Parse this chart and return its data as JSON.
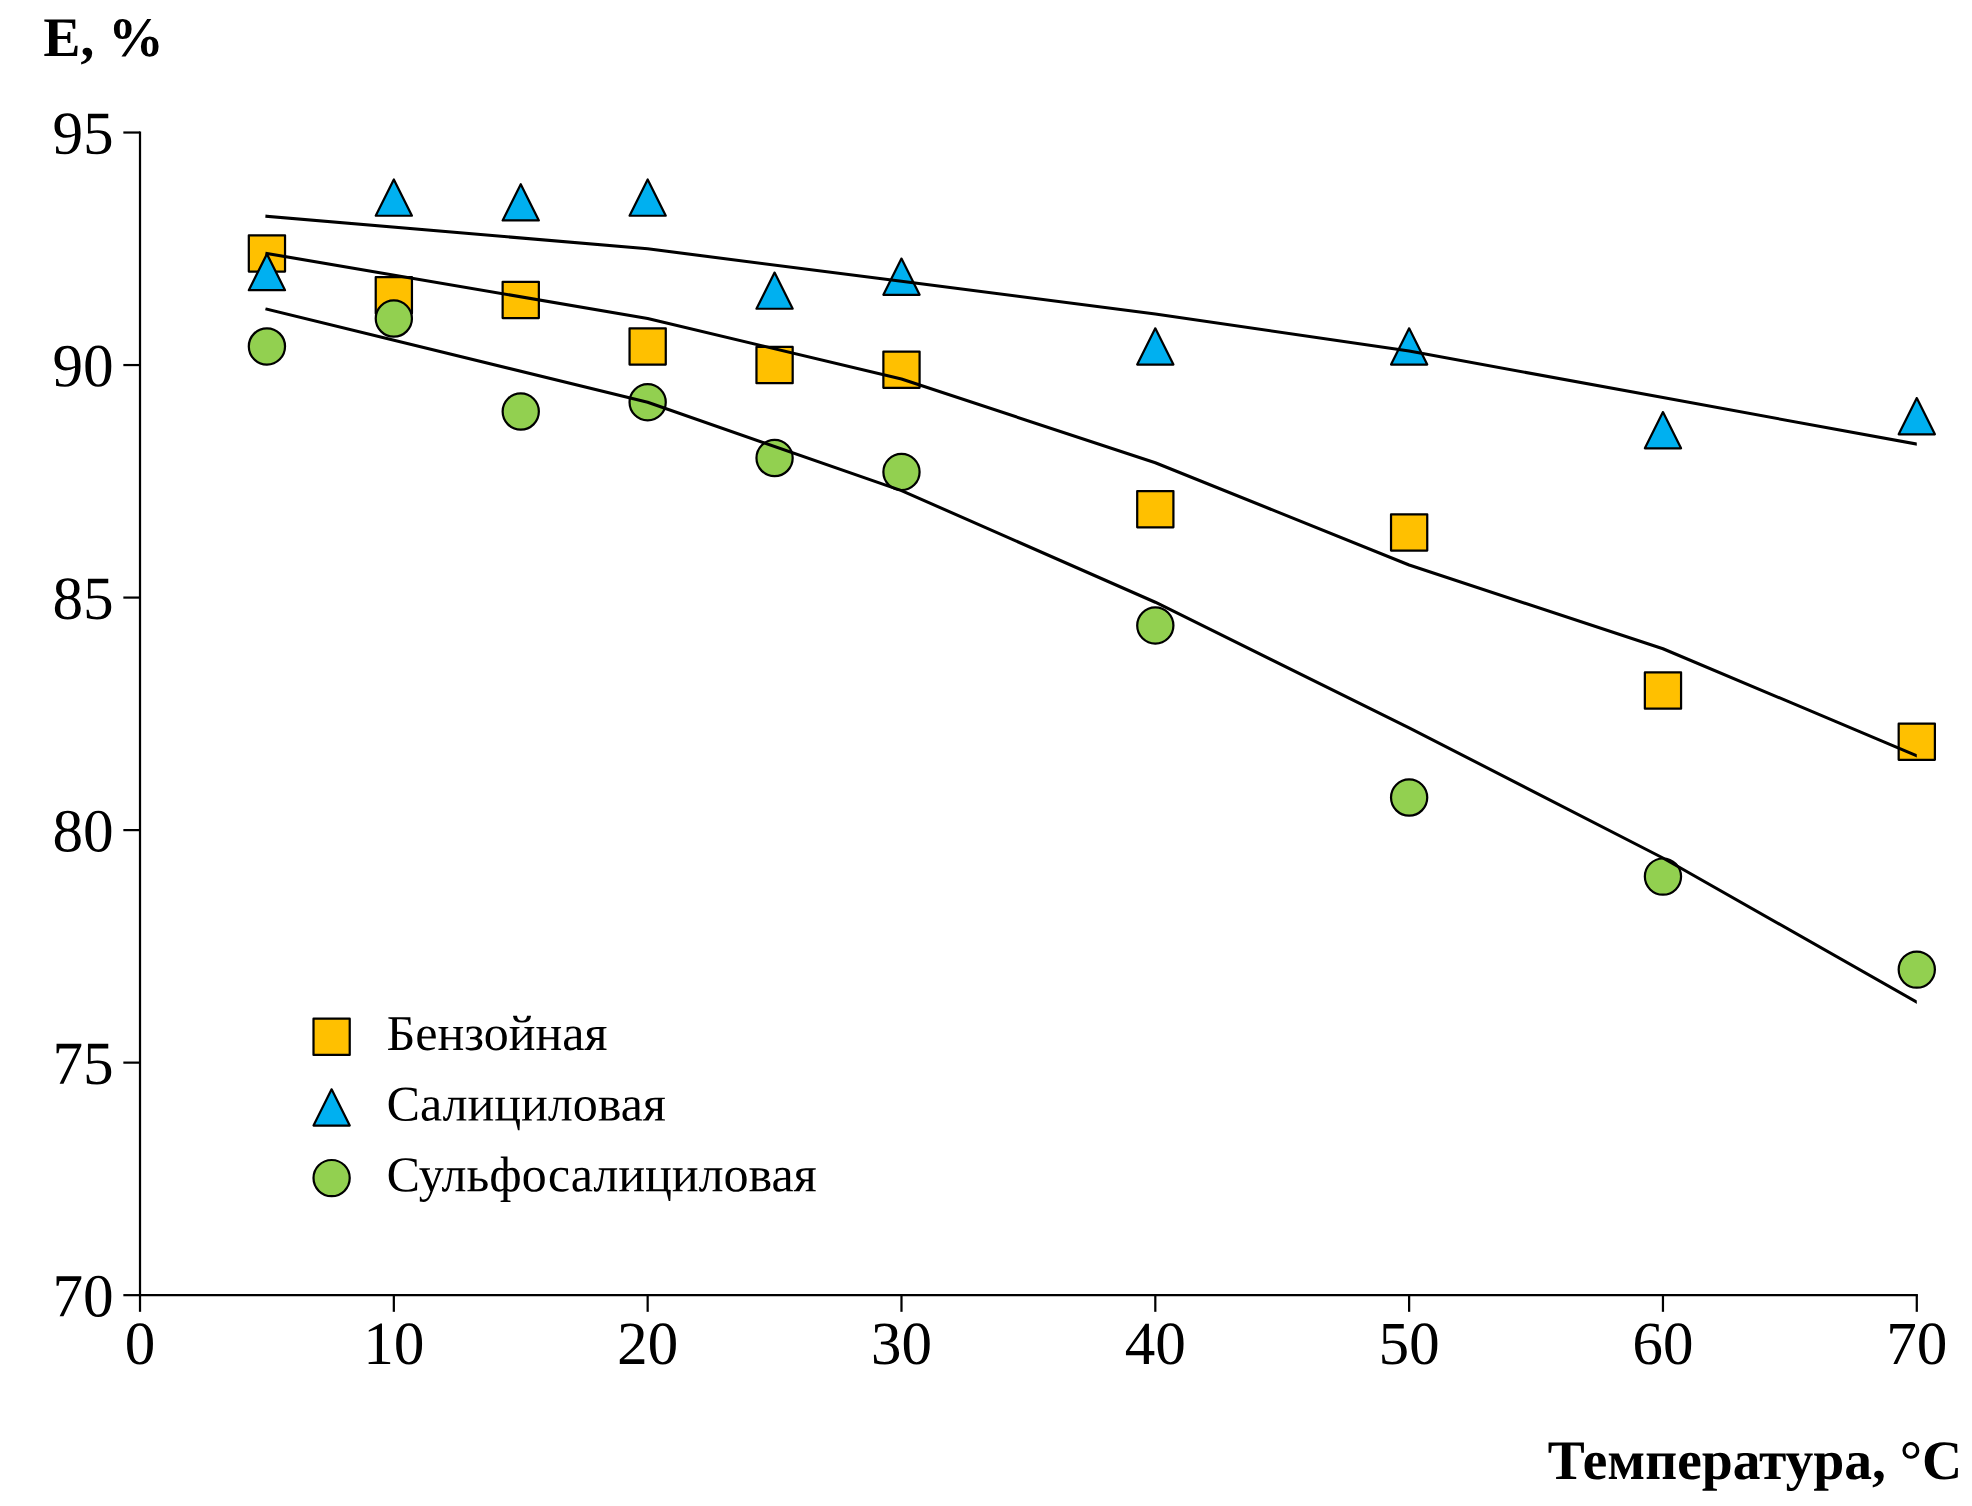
{
  "chart_data": {
    "type": "scatter",
    "xlabel": "Температура, °C",
    "ylabel": "E, %",
    "xlim": [
      0,
      70
    ],
    "xticks": [
      0,
      10,
      20,
      30,
      40,
      50,
      60,
      70
    ],
    "ylim": [
      70,
      95
    ],
    "yticks": [
      70,
      75,
      80,
      85,
      90,
      95
    ],
    "grid": false,
    "legend": "bottom left",
    "series": [
      {
        "name": "Бензойная",
        "color": "#ffc000",
        "marker": "square",
        "x": [
          5,
          10,
          15,
          20,
          25,
          30,
          40,
          50,
          60,
          70
        ],
        "values": [
          92.4,
          91.5,
          91.4,
          90.4,
          90.0,
          89.9,
          86.9,
          86.4,
          83.0,
          81.9
        ]
      },
      {
        "name": "Салициловая",
        "color": "#00b0f0",
        "marker": "triangle",
        "x": [
          5,
          10,
          15,
          20,
          25,
          30,
          40,
          50,
          60,
          70
        ],
        "values": [
          92.0,
          93.6,
          93.5,
          93.6,
          91.6,
          91.9,
          90.4,
          90.4,
          88.6,
          88.9
        ]
      },
      {
        "name": "Сульфосалициловая",
        "color": "#92d050",
        "marker": "circle",
        "x": [
          5,
          10,
          15,
          20,
          25,
          30,
          40,
          50,
          60,
          70
        ],
        "values": [
          90.4,
          91.0,
          89.0,
          89.2,
          88.0,
          87.7,
          84.4,
          80.7,
          79.0,
          77.0
        ]
      },
      {
        "type": "line",
        "color": "#000000",
        "marker": "none",
        "x": [
          5,
          20,
          30,
          40,
          50,
          60,
          70
        ],
        "values": [
          92.4,
          91.0,
          89.7,
          87.9,
          85.7,
          83.9,
          81.6
        ]
      },
      {
        "type": "line",
        "color": "#000000",
        "marker": "none",
        "x": [
          5,
          20,
          30,
          40,
          50,
          60,
          70
        ],
        "values": [
          93.2,
          92.5,
          91.8,
          91.1,
          90.3,
          89.3,
          88.3
        ]
      },
      {
        "type": "line",
        "color": "#000000",
        "marker": "none",
        "x": [
          5,
          20,
          30,
          40,
          50,
          60,
          70
        ],
        "values": [
          91.2,
          89.2,
          87.3,
          84.9,
          82.2,
          79.4,
          76.3
        ]
      }
    ]
  }
}
